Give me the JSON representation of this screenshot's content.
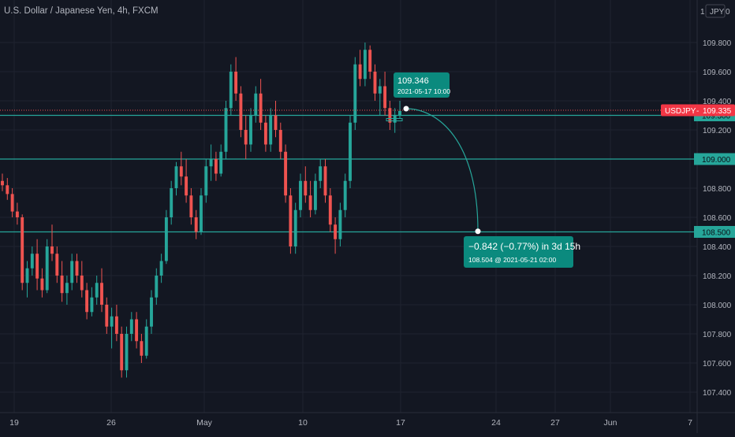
{
  "title": "U.S. Dollar / Japanese Yen, 4h, FXCM",
  "currency_badge": "JPY",
  "top_right_label": "0",
  "colors": {
    "background": "#131722",
    "grid": "#1f2330",
    "up": "#26a69a",
    "down": "#ef5350",
    "level_line": "#26a69a",
    "projection": "#1f8f86",
    "axis_text": "#b2b5be",
    "price_tag": "#f23645"
  },
  "chart_data": {
    "type": "candlestick",
    "title": "U.S. Dollar / Japanese Yen, 4h, FXCM",
    "symbol": "USDJPY",
    "current_price": 109.335,
    "current_price_label": "109.335",
    "y_tick_labels": [
      "109.800",
      "109.600",
      "109.400",
      "109.200",
      "109.000",
      "108.800",
      "108.600",
      "108.400",
      "108.200",
      "108.000",
      "107.800",
      "107.600",
      "107.400"
    ],
    "x_tick_labels": [
      "19",
      "26",
      "May",
      "10",
      "17",
      "24",
      "27",
      "Jun",
      "7"
    ],
    "ylim": [
      107.25,
      109.97
    ],
    "horizontal_levels": [
      {
        "value": 109.3,
        "label": "109.300"
      },
      {
        "value": 109.0,
        "label": "109.000"
      },
      {
        "value": 108.5,
        "label": "108.500"
      }
    ],
    "start_callout": {
      "price": "109.346",
      "datetime": "2021-05-17 10:00"
    },
    "end_callout": {
      "change": "−0.842 (−0.77%) in 3d 15h",
      "detail": "108.504 @ 2021-05-21  02:00"
    },
    "projection": {
      "from": {
        "date": "2021-05-17 10:00",
        "price": 109.346
      },
      "to": {
        "date": "2021-05-21 02:00",
        "price": 108.504
      }
    },
    "candles": [
      [
        108.85,
        108.9,
        108.78,
        108.82
      ],
      [
        108.82,
        108.87,
        108.72,
        108.76
      ],
      [
        108.76,
        108.8,
        108.6,
        108.64
      ],
      [
        108.64,
        108.7,
        108.55,
        108.6
      ],
      [
        108.6,
        108.62,
        108.1,
        108.15
      ],
      [
        108.15,
        108.3,
        108.05,
        108.25
      ],
      [
        108.25,
        108.4,
        108.2,
        108.35
      ],
      [
        108.35,
        108.45,
        108.1,
        108.18
      ],
      [
        108.18,
        108.25,
        108.05,
        108.1
      ],
      [
        108.1,
        108.45,
        108.08,
        108.4
      ],
      [
        108.4,
        108.55,
        108.3,
        108.35
      ],
      [
        108.35,
        108.4,
        108.15,
        108.2
      ],
      [
        108.2,
        108.3,
        108.02,
        108.08
      ],
      [
        108.08,
        108.2,
        108.0,
        108.15
      ],
      [
        108.15,
        108.35,
        108.1,
        108.3
      ],
      [
        108.3,
        108.35,
        108.15,
        108.2
      ],
      [
        108.2,
        108.3,
        108.05,
        108.1
      ],
      [
        108.1,
        108.15,
        107.9,
        107.95
      ],
      [
        107.95,
        108.12,
        107.92,
        108.05
      ],
      [
        108.05,
        108.2,
        108.0,
        108.15
      ],
      [
        108.15,
        108.25,
        107.95,
        108.0
      ],
      [
        108.0,
        108.05,
        107.8,
        107.85
      ],
      [
        107.85,
        107.98,
        107.7,
        107.92
      ],
      [
        107.92,
        108.0,
        107.75,
        107.8
      ],
      [
        107.8,
        107.85,
        107.5,
        107.55
      ],
      [
        107.55,
        107.85,
        107.5,
        107.8
      ],
      [
        107.8,
        107.95,
        107.75,
        107.9
      ],
      [
        107.9,
        107.95,
        107.7,
        107.75
      ],
      [
        107.75,
        107.8,
        107.6,
        107.65
      ],
      [
        107.65,
        107.9,
        107.63,
        107.85
      ],
      [
        107.85,
        108.1,
        107.8,
        108.05
      ],
      [
        108.05,
        108.25,
        108.0,
        108.2
      ],
      [
        108.2,
        108.35,
        108.15,
        108.3
      ],
      [
        108.3,
        108.65,
        108.28,
        108.6
      ],
      [
        108.6,
        108.85,
        108.55,
        108.8
      ],
      [
        108.8,
        108.98,
        108.75,
        108.95
      ],
      [
        108.95,
        109.05,
        108.82,
        108.88
      ],
      [
        108.88,
        109.0,
        108.7,
        108.75
      ],
      [
        108.75,
        108.8,
        108.55,
        108.6
      ],
      [
        108.6,
        108.65,
        108.45,
        108.5
      ],
      [
        108.5,
        108.8,
        108.48,
        108.75
      ],
      [
        108.75,
        109.0,
        108.7,
        108.95
      ],
      [
        108.95,
        109.1,
        108.85,
        109.0
      ],
      [
        109.0,
        109.05,
        108.85,
        108.9
      ],
      [
        108.9,
        109.1,
        108.88,
        109.05
      ],
      [
        109.05,
        109.4,
        109.0,
        109.35
      ],
      [
        109.35,
        109.65,
        109.3,
        109.6
      ],
      [
        109.6,
        109.7,
        109.4,
        109.45
      ],
      [
        109.45,
        109.5,
        109.15,
        109.2
      ],
      [
        109.2,
        109.3,
        109.0,
        109.1
      ],
      [
        109.1,
        109.35,
        109.05,
        109.3
      ],
      [
        109.3,
        109.5,
        109.25,
        109.45
      ],
      [
        109.45,
        109.55,
        109.2,
        109.25
      ],
      [
        109.25,
        109.3,
        109.05,
        109.1
      ],
      [
        109.1,
        109.35,
        109.05,
        109.3
      ],
      [
        109.3,
        109.4,
        109.15,
        109.2
      ],
      [
        109.2,
        109.25,
        109.0,
        109.05
      ],
      [
        109.05,
        109.1,
        108.7,
        108.75
      ],
      [
        108.75,
        108.8,
        108.35,
        108.4
      ],
      [
        108.4,
        108.7,
        108.35,
        108.65
      ],
      [
        108.65,
        108.9,
        108.6,
        108.85
      ],
      [
        108.85,
        108.95,
        108.7,
        108.75
      ],
      [
        108.75,
        108.85,
        108.6,
        108.65
      ],
      [
        108.65,
        108.9,
        108.62,
        108.85
      ],
      [
        108.85,
        109.0,
        108.8,
        108.95
      ],
      [
        108.95,
        109.0,
        108.7,
        108.75
      ],
      [
        108.75,
        108.8,
        108.5,
        108.55
      ],
      [
        108.55,
        108.6,
        108.35,
        108.45
      ],
      [
        108.45,
        108.7,
        108.4,
        108.65
      ],
      [
        108.65,
        108.9,
        108.6,
        108.85
      ],
      [
        108.85,
        109.3,
        108.8,
        109.25
      ],
      [
        109.25,
        109.7,
        109.2,
        109.65
      ],
      [
        109.65,
        109.75,
        109.5,
        109.55
      ],
      [
        109.55,
        109.8,
        109.5,
        109.75
      ],
      [
        109.75,
        109.78,
        109.55,
        109.6
      ],
      [
        109.6,
        109.65,
        109.4,
        109.45
      ],
      [
        109.45,
        109.55,
        109.3,
        109.5
      ],
      [
        109.5,
        109.6,
        109.3,
        109.35
      ],
      [
        109.35,
        109.4,
        109.2,
        109.25
      ],
      [
        109.25,
        109.35,
        109.18,
        109.3
      ],
      [
        109.3,
        109.4,
        109.28,
        109.33
      ]
    ]
  }
}
